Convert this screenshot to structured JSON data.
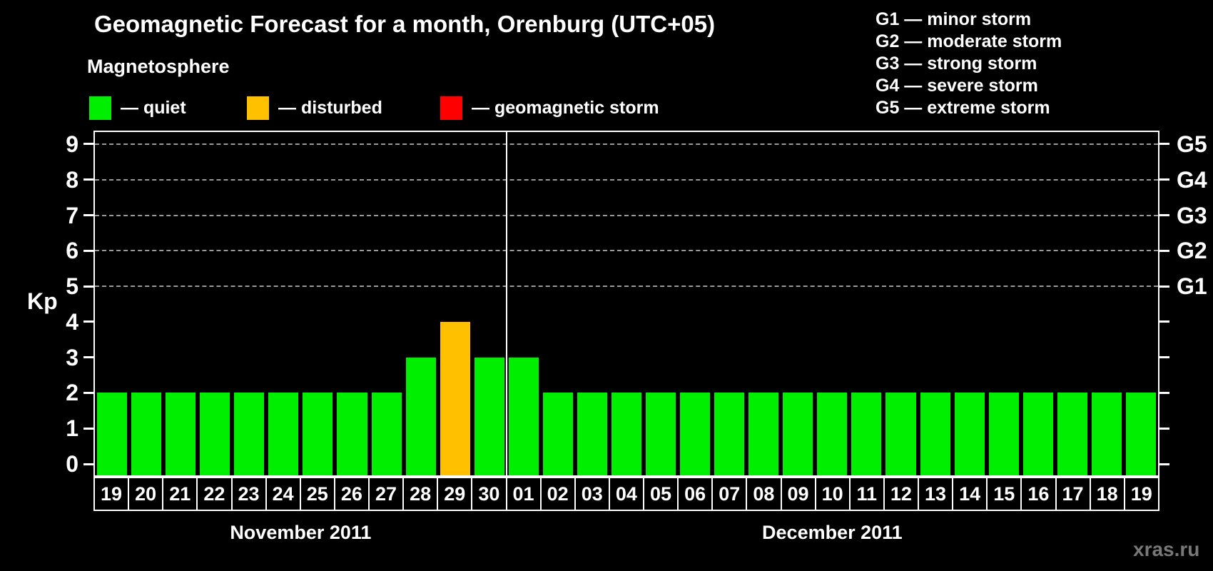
{
  "title": "Geomagnetic Forecast for a month, Orenburg (UTC+05)",
  "subtitle": "Magnetosphere",
  "legend": {
    "items": [
      {
        "name": "quiet",
        "color": "#00ee00",
        "label": "— quiet"
      },
      {
        "name": "disturbed",
        "color": "#ffc000",
        "label": "— disturbed"
      },
      {
        "name": "storm",
        "color": "#ff0000",
        "label": "— geomagnetic storm"
      }
    ]
  },
  "g_scale_legend": [
    "G1 — minor storm",
    "G2 — moderate storm",
    "G3 — strong storm",
    "G4 — severe storm",
    "G5 — extreme storm"
  ],
  "watermark": "xras.ru",
  "colors": {
    "quiet": "#00ee00",
    "disturbed": "#ffc000",
    "storm": "#ff0000",
    "background": "#000000",
    "grid": "#999999",
    "axis": "#ffffff",
    "watermark": "#787878"
  },
  "chart_data": {
    "type": "bar",
    "title": "Geomagnetic Forecast for a month, Orenburg (UTC+05)",
    "ylabel_left": "Kp",
    "ylim": [
      0,
      9
    ],
    "yticks": [
      0,
      1,
      2,
      3,
      4,
      5,
      6,
      7,
      8,
      9
    ],
    "gridlines_at": [
      5,
      6,
      7,
      8,
      9
    ],
    "grid": "dashed horizontal at Kp 5-9 only",
    "legend_position": "top",
    "right_axis_labels": [
      {
        "kp": 5,
        "label": "G1"
      },
      {
        "kp": 6,
        "label": "G2"
      },
      {
        "kp": 7,
        "label": "G3"
      },
      {
        "kp": 8,
        "label": "G4"
      },
      {
        "kp": 9,
        "label": "G5"
      }
    ],
    "months": [
      {
        "label": "November 2011",
        "days": [
          {
            "day": "19",
            "kp": 2,
            "status": "quiet"
          },
          {
            "day": "20",
            "kp": 2,
            "status": "quiet"
          },
          {
            "day": "21",
            "kp": 2,
            "status": "quiet"
          },
          {
            "day": "22",
            "kp": 2,
            "status": "quiet"
          },
          {
            "day": "23",
            "kp": 2,
            "status": "quiet"
          },
          {
            "day": "24",
            "kp": 2,
            "status": "quiet"
          },
          {
            "day": "25",
            "kp": 2,
            "status": "quiet"
          },
          {
            "day": "26",
            "kp": 2,
            "status": "quiet"
          },
          {
            "day": "27",
            "kp": 2,
            "status": "quiet"
          },
          {
            "day": "28",
            "kp": 3,
            "status": "quiet"
          },
          {
            "day": "29",
            "kp": 4,
            "status": "disturbed"
          },
          {
            "day": "30",
            "kp": 3,
            "status": "quiet"
          }
        ]
      },
      {
        "label": "December 2011",
        "days": [
          {
            "day": "01",
            "kp": 3,
            "status": "quiet"
          },
          {
            "day": "02",
            "kp": 2,
            "status": "quiet"
          },
          {
            "day": "03",
            "kp": 2,
            "status": "quiet"
          },
          {
            "day": "04",
            "kp": 2,
            "status": "quiet"
          },
          {
            "day": "05",
            "kp": 2,
            "status": "quiet"
          },
          {
            "day": "06",
            "kp": 2,
            "status": "quiet"
          },
          {
            "day": "07",
            "kp": 2,
            "status": "quiet"
          },
          {
            "day": "08",
            "kp": 2,
            "status": "quiet"
          },
          {
            "day": "09",
            "kp": 2,
            "status": "quiet"
          },
          {
            "day": "10",
            "kp": 2,
            "status": "quiet"
          },
          {
            "day": "11",
            "kp": 2,
            "status": "quiet"
          },
          {
            "day": "12",
            "kp": 2,
            "status": "quiet"
          },
          {
            "day": "13",
            "kp": 2,
            "status": "quiet"
          },
          {
            "day": "14",
            "kp": 2,
            "status": "quiet"
          },
          {
            "day": "15",
            "kp": 2,
            "status": "quiet"
          },
          {
            "day": "16",
            "kp": 2,
            "status": "quiet"
          },
          {
            "day": "17",
            "kp": 2,
            "status": "quiet"
          },
          {
            "day": "18",
            "kp": 2,
            "status": "quiet"
          },
          {
            "day": "19",
            "kp": 2,
            "status": "quiet"
          }
        ]
      }
    ]
  }
}
